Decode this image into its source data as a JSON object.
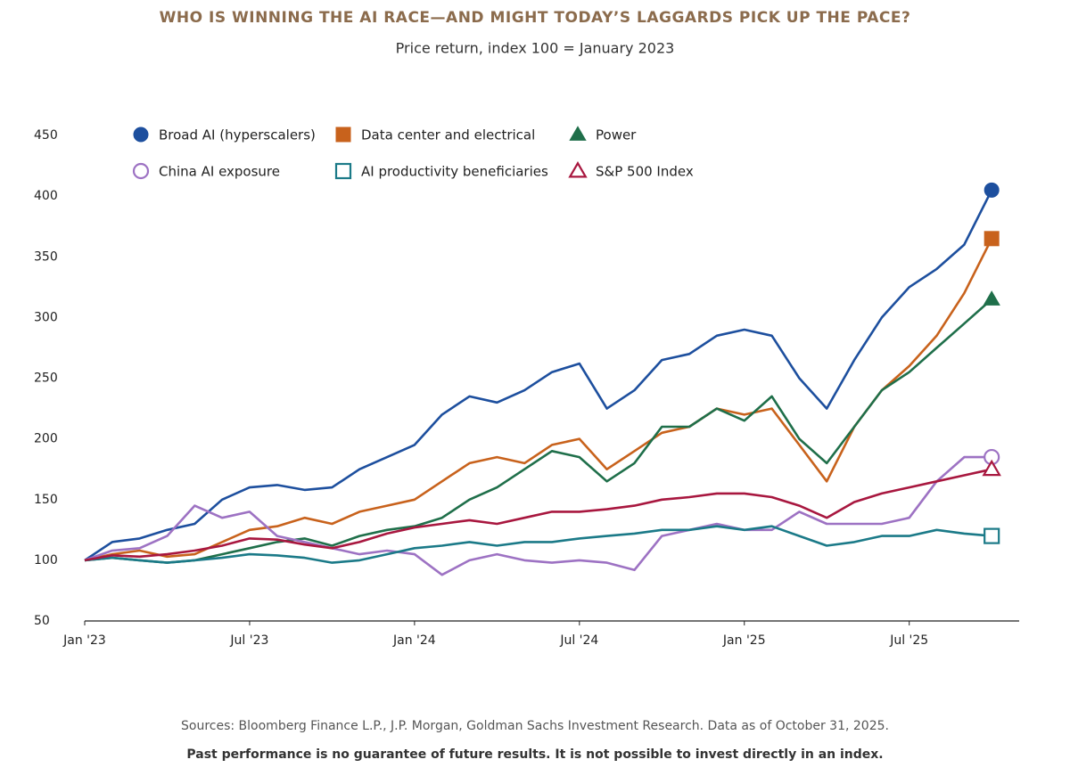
{
  "chart_data": {
    "type": "line",
    "title": "WHO IS WINNING THE AI RACE—AND MIGHT TODAY’S LAGGARDS PICK UP THE PACE?",
    "subtitle": "Price return, index 100 = January 2023",
    "source": "Sources: Bloomberg Finance L.P., J.P. Morgan, Goldman Sachs Investment Research. Data as of October 31, 2025.",
    "note": "Past performance is no guarantee of future results. It is not possible to invest directly in an index.",
    "x": [
      "2023-01",
      "2023-02",
      "2023-03",
      "2023-04",
      "2023-05",
      "2023-06",
      "2023-07",
      "2023-08",
      "2023-09",
      "2023-10",
      "2023-11",
      "2023-12",
      "2024-01",
      "2024-02",
      "2024-03",
      "2024-04",
      "2024-05",
      "2024-06",
      "2024-07",
      "2024-08",
      "2024-09",
      "2024-10",
      "2024-11",
      "2024-12",
      "2025-01",
      "2025-02",
      "2025-03",
      "2025-04",
      "2025-05",
      "2025-06",
      "2025-07",
      "2025-08",
      "2025-09",
      "2025-10"
    ],
    "xlim": [
      "2023-01",
      "2025-11"
    ],
    "xticks": [
      {
        "value": "2023-01",
        "label": "Jan '23"
      },
      {
        "value": "2023-07",
        "label": "Jul '23"
      },
      {
        "value": "2024-01",
        "label": "Jan '24"
      },
      {
        "value": "2024-07",
        "label": "Jul '24"
      },
      {
        "value": "2025-01",
        "label": "Jan '25"
      },
      {
        "value": "2025-07",
        "label": "Jul '25"
      }
    ],
    "ylim": [
      50,
      450
    ],
    "yticks": [
      50,
      100,
      150,
      200,
      250,
      300,
      350,
      400,
      450
    ],
    "grid": false,
    "series": [
      {
        "name": "Broad AI (hyperscalers)",
        "color": "#1d4f9e",
        "marker": "circle",
        "filled": true,
        "values": [
          100,
          115,
          118,
          125,
          130,
          150,
          160,
          162,
          158,
          160,
          175,
          185,
          195,
          220,
          235,
          230,
          240,
          255,
          262,
          225,
          240,
          265,
          270,
          285,
          290,
          285,
          250,
          225,
          265,
          300,
          325,
          340,
          360,
          405
        ]
      },
      {
        "name": "Data center and electrical",
        "color": "#c8621c",
        "marker": "square",
        "filled": true,
        "values": [
          100,
          105,
          108,
          103,
          105,
          115,
          125,
          128,
          135,
          130,
          140,
          145,
          150,
          165,
          180,
          185,
          180,
          195,
          200,
          175,
          190,
          205,
          210,
          225,
          220,
          225,
          195,
          165,
          210,
          240,
          260,
          285,
          320,
          365
        ]
      },
      {
        "name": "Power",
        "color": "#1f6f4a",
        "marker": "triangle",
        "filled": true,
        "values": [
          100,
          102,
          100,
          98,
          100,
          105,
          110,
          115,
          118,
          112,
          120,
          125,
          128,
          135,
          150,
          160,
          175,
          190,
          185,
          165,
          180,
          210,
          210,
          225,
          215,
          235,
          200,
          180,
          210,
          240,
          255,
          275,
          295,
          315
        ]
      },
      {
        "name": "China AI exposure",
        "color": "#9d72c3",
        "marker": "circle",
        "filled": false,
        "values": [
          100,
          108,
          110,
          120,
          145,
          135,
          140,
          120,
          115,
          110,
          105,
          108,
          105,
          88,
          100,
          105,
          100,
          98,
          100,
          98,
          92,
          120,
          125,
          130,
          125,
          125,
          140,
          130,
          130,
          130,
          135,
          165,
          185,
          185
        ]
      },
      {
        "name": "AI productivity beneficiaries",
        "color": "#1b7a88",
        "marker": "square",
        "filled": false,
        "values": [
          100,
          102,
          100,
          98,
          100,
          102,
          105,
          104,
          102,
          98,
          100,
          105,
          110,
          112,
          115,
          112,
          115,
          115,
          118,
          120,
          122,
          125,
          125,
          128,
          125,
          128,
          120,
          112,
          115,
          120,
          120,
          125,
          122,
          120
        ]
      },
      {
        "name": "S&P 500 Index",
        "color": "#a8173f",
        "marker": "triangle",
        "filled": false,
        "values": [
          100,
          104,
          103,
          105,
          108,
          112,
          118,
          117,
          113,
          110,
          115,
          122,
          127,
          130,
          133,
          130,
          135,
          140,
          140,
          142,
          145,
          150,
          152,
          155,
          155,
          152,
          145,
          135,
          148,
          155,
          160,
          165,
          170,
          175
        ]
      }
    ]
  }
}
